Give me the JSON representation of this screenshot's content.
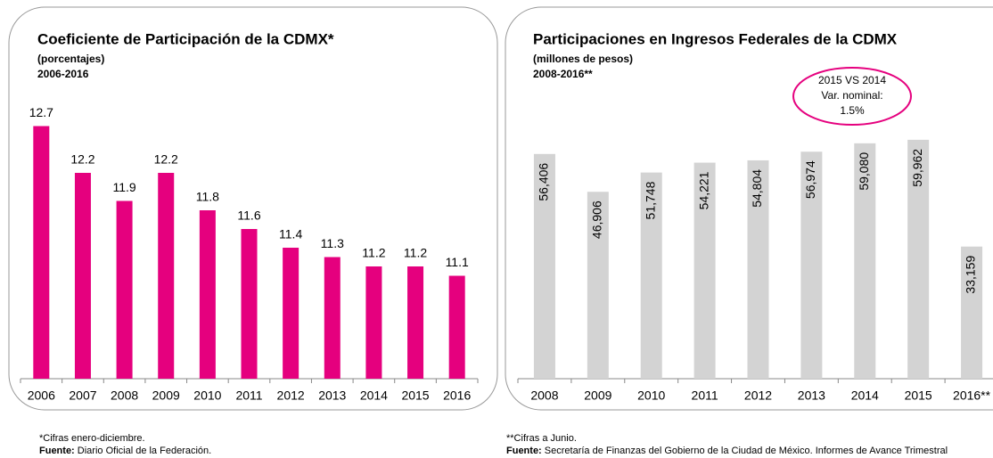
{
  "chart_data": [
    {
      "type": "bar",
      "title": "Coeficiente de Participación de la CDMX*",
      "subtitle": "(porcentajes)",
      "period": "2006-2016",
      "categories": [
        "2006",
        "2007",
        "2008",
        "2009",
        "2010",
        "2011",
        "2012",
        "2013",
        "2014",
        "2015",
        "2016"
      ],
      "values": [
        12.7,
        12.2,
        11.9,
        12.2,
        11.8,
        11.6,
        11.4,
        11.3,
        11.2,
        11.2,
        11.1
      ],
      "color": "#e5007e",
      "ylim": [
        10,
        13
      ],
      "note": "*Cifras enero-diciembre.",
      "source_label": "Fuente:",
      "source": "Diario Oficial de la Federación."
    },
    {
      "type": "bar",
      "title": "Participaciones en Ingresos Federales de la CDMX",
      "subtitle": "(millones de pesos)",
      "period": "2008-2016**",
      "categories": [
        "2008",
        "2009",
        "2010",
        "2011",
        "2012",
        "2013",
        "2014",
        "2015",
        "2016**"
      ],
      "values": [
        56406,
        46906,
        51748,
        54221,
        54804,
        56974,
        59080,
        59962,
        33159
      ],
      "value_labels": [
        "56,406",
        "46,906",
        "51,748",
        "54,221",
        "54,804",
        "56,974",
        "59,080",
        "59,962",
        "33,159"
      ],
      "color": "#d3d3d3",
      "ylim": [
        0,
        70000
      ],
      "annotation": [
        "2015 VS 2014",
        "Var. nominal:",
        "1.5%"
      ],
      "note": "**Cifras a Junio.",
      "source_label": "Fuente:",
      "source": "Secretaría de Finanzas del Gobierno de la Ciudad de México. Informes de Avance Trimestral"
    }
  ]
}
